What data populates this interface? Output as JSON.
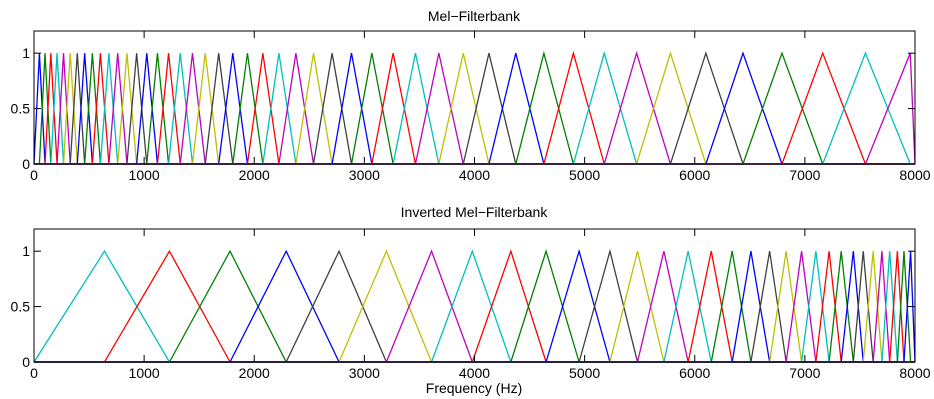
{
  "chart_data": [
    {
      "type": "line",
      "title": "Mel−Filterbank",
      "xlabel": "",
      "ylabel": "",
      "xlim": [
        0,
        8000
      ],
      "ylim": [
        0,
        1.2
      ],
      "xticks": [
        0,
        1000,
        2000,
        3000,
        4000,
        5000,
        6000,
        7000,
        8000
      ],
      "yticks": [
        0,
        0.5,
        1
      ],
      "ytick_labels": [
        "0",
        "0.5",
        "1"
      ],
      "grid": false,
      "filter_shape": "triangle",
      "peak_value": 1,
      "filter_edges_hz": [
        0,
        49,
        100,
        153,
        209,
        268,
        329,
        393,
        460,
        530,
        603,
        680,
        760,
        844,
        932,
        1024,
        1121,
        1222,
        1328,
        1439,
        1555,
        1677,
        1805,
        1938,
        2078,
        2224,
        2378,
        2538,
        2707,
        2883,
        3068,
        3261,
        3464,
        3676,
        3898,
        4131,
        4375,
        4630,
        4898,
        5178,
        5472,
        5779,
        6101,
        6438,
        6792,
        7162,
        7550,
        7957,
        8000
      ],
      "colors": [
        "#0000ff",
        "#008000",
        "#ff0000",
        "#00bfbf",
        "#bf00bf",
        "#bfbf00",
        "#404040"
      ]
    },
    {
      "type": "line",
      "title": "Inverted Mel−Filterbank",
      "xlabel": "Frequency (Hz)",
      "ylabel": "",
      "xlim": [
        0,
        8000
      ],
      "ylim": [
        0,
        1.2
      ],
      "xticks": [
        0,
        1000,
        2000,
        3000,
        4000,
        5000,
        6000,
        7000,
        8000
      ],
      "yticks": [
        0,
        0.5,
        1
      ],
      "ytick_labels": [
        "0",
        "0.5",
        "1"
      ],
      "grid": false,
      "filter_shape": "triangle",
      "peak_value": 1,
      "filter_edges_hz": [
        0,
        640,
        1230,
        1780,
        2290,
        2770,
        3200,
        3610,
        3980,
        4330,
        4650,
        4950,
        5230,
        5480,
        5720,
        5940,
        6150,
        6340,
        6510,
        6680,
        6830,
        6970,
        7100,
        7220,
        7330,
        7440,
        7530,
        7620,
        7700,
        7770,
        7840,
        7900,
        7960,
        8000
      ],
      "colors": [
        "#00bfbf",
        "#ff0000",
        "#008000",
        "#0000ff",
        "#404040",
        "#bfbf00",
        "#bf00bf"
      ]
    }
  ]
}
